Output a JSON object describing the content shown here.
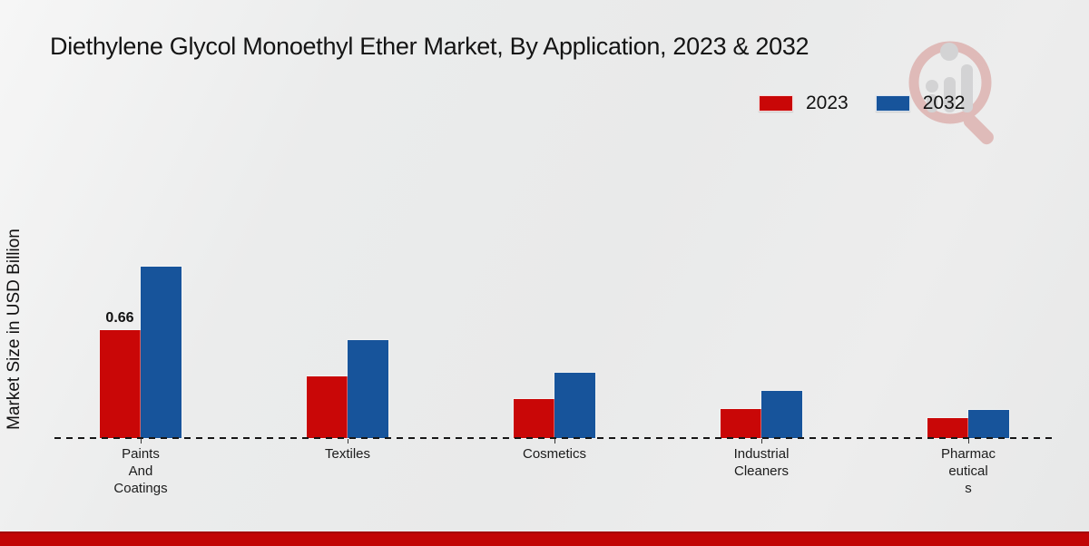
{
  "title": "Diethylene Glycol Monoethyl Ether Market, By Application, 2023 & 2032",
  "ylabel": "Market Size in USD Billion",
  "legend": [
    {
      "label": "2023",
      "color": "#c90707"
    },
    {
      "label": "2032",
      "color": "#17549b"
    }
  ],
  "watermark_icon": "magnifier-bar-chart-logo",
  "colors": {
    "bar_2023": "#c90707",
    "bar_2032": "#17549b",
    "footer": "#c10505",
    "axis": "#161616",
    "background": "#e9eaea"
  },
  "footer": {
    "color": "#c10505"
  },
  "chart_data": {
    "type": "bar",
    "title": "Diethylene Glycol Monoethyl Ether Market, By Application, 2023 & 2032",
    "xlabel": "",
    "ylabel": "Market Size in USD Billion",
    "categories": [
      "Paints And Coatings",
      "Textiles",
      "Cosmetics",
      "Industrial Cleaners",
      "Pharmaceuticals"
    ],
    "category_label_lines": [
      [
        "Paints",
        "And",
        "Coatings"
      ],
      [
        "Textiles"
      ],
      [
        "Cosmetics"
      ],
      [
        "Industrial",
        "Cleaners"
      ],
      [
        "Pharmac",
        "eutical",
        "s"
      ]
    ],
    "series": [
      {
        "name": "2023",
        "color": "#c90707",
        "values": [
          0.66,
          0.38,
          0.24,
          0.18,
          0.12
        ],
        "data_labels": [
          "0.66",
          "",
          "",
          "",
          ""
        ]
      },
      {
        "name": "2032",
        "color": "#17549b",
        "values": [
          1.05,
          0.6,
          0.4,
          0.29,
          0.17
        ],
        "data_labels": [
          "",
          "",
          "",
          "",
          ""
        ]
      }
    ],
    "ylim": [
      0,
      1.2
    ],
    "grid": false,
    "legend_position": "top-right",
    "x_axis_style": "dashed",
    "units": "USD Billion"
  }
}
